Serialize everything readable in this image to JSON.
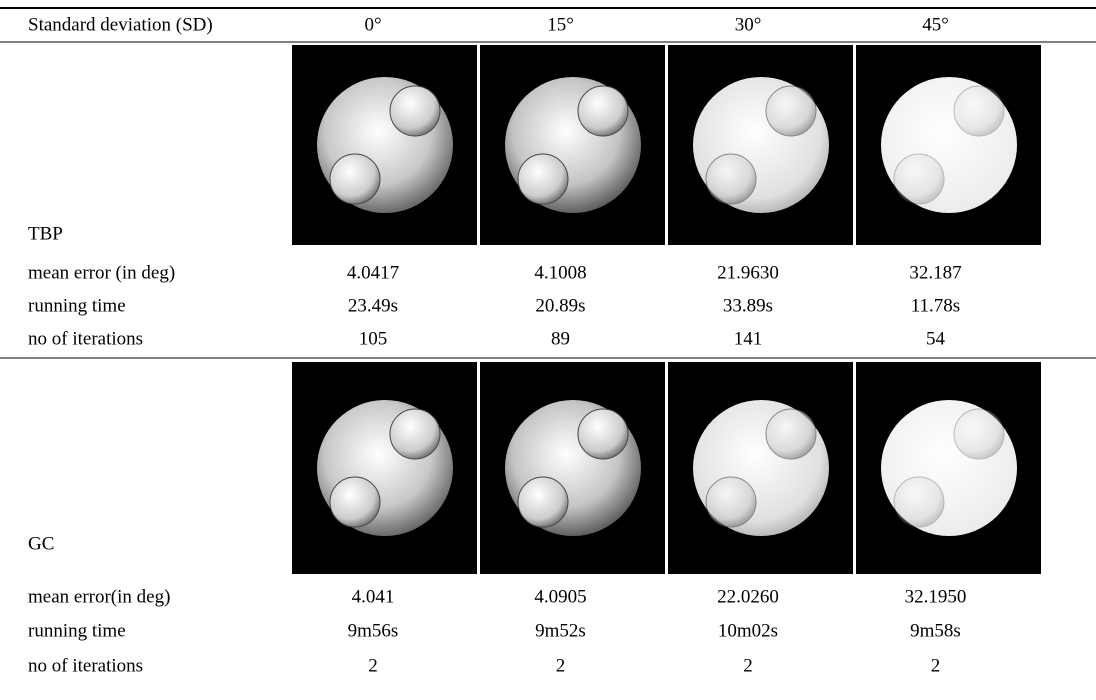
{
  "header": [
    "Standard deviation (SD)",
    "0°",
    "15°",
    "30°",
    "45°"
  ],
  "sections": [
    {
      "label": "TBP",
      "rows": [
        {
          "label": "mean error (in deg)",
          "values": [
            "4.0417",
            "4.1008",
            "21.9630",
            "32.187"
          ]
        },
        {
          "label": "running time",
          "values": [
            "23.49s",
            "20.89s",
            "33.89s",
            "11.78s"
          ]
        },
        {
          "label": "no of iterations",
          "values": [
            "105",
            "89",
            "141",
            "54"
          ]
        }
      ]
    },
    {
      "label": "GC",
      "rows": [
        {
          "label": "mean error(in deg)",
          "values": [
            "4.041",
            "4.0905",
            "22.0260",
            "32.1950"
          ]
        },
        {
          "label": "running time",
          "values": [
            "9m56s",
            "9m52s",
            "10m02s",
            "9m58s"
          ]
        },
        {
          "label": "no of iterations",
          "values": [
            "2",
            "2",
            "2",
            "2"
          ]
        }
      ]
    }
  ]
}
